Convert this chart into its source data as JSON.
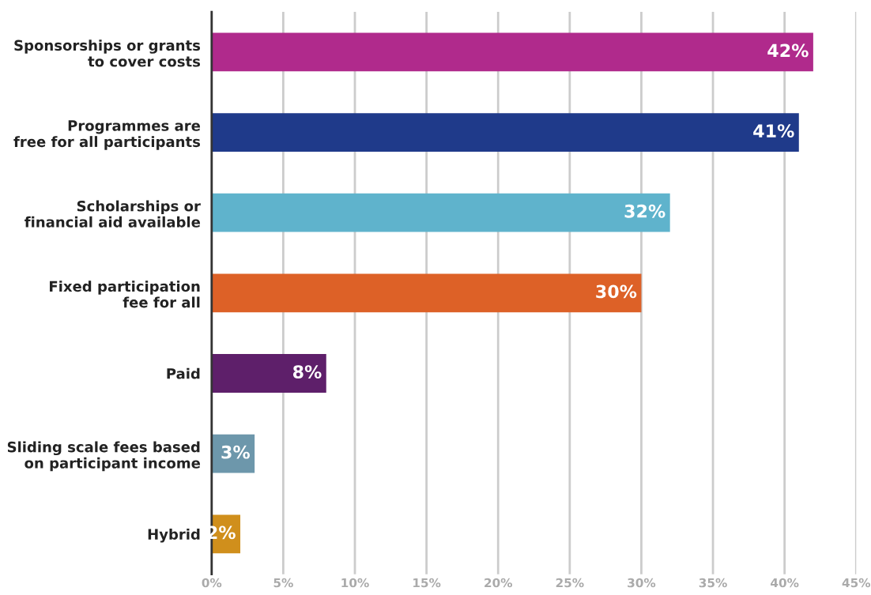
{
  "chart_data": {
    "type": "bar",
    "orientation": "horizontal",
    "categories": [
      "Sponsorships or grants\nto cover costs",
      "Programmes are\nfree for all participants",
      "Scholarships or\nfinancial aid available",
      "Fixed participation\nfee for all",
      "Paid",
      "Sliding scale fees based\non participant income",
      "Hybrid"
    ],
    "values": [
      42,
      41,
      32,
      30,
      8,
      3,
      2
    ],
    "colors": [
      "#b02a8c",
      "#1f3a8a",
      "#5fb3cc",
      "#dd6127",
      "#5e1f6a",
      "#6d97ab",
      "#d08f1c"
    ],
    "value_labels": [
      "42%",
      "41%",
      "32%",
      "30%",
      "8%",
      "3%",
      "2%"
    ],
    "xlim": [
      0,
      45
    ],
    "xticks": [
      {
        "value": 0,
        "label": "0%"
      },
      {
        "value": 5,
        "label": "5%"
      },
      {
        "value": 10,
        "label": "10%"
      },
      {
        "value": 15,
        "label": "15%"
      },
      {
        "value": 20,
        "label": "20%"
      },
      {
        "value": 25,
        "label": "25%"
      },
      {
        "value": 30,
        "label": "30%"
      },
      {
        "value": 35,
        "label": "35%"
      },
      {
        "value": 40,
        "label": "40%"
      },
      {
        "value": 45,
        "label": "45%"
      }
    ],
    "grid": "x",
    "legend": false
  }
}
